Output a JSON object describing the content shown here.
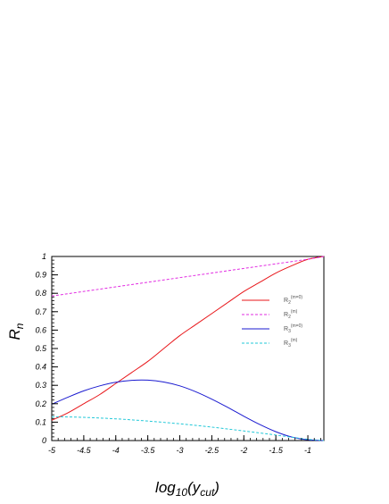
{
  "chart_data": {
    "type": "line",
    "xlabel": {
      "base": "log",
      "base_sub": "10",
      "open": "(y",
      "var_sub": "cut",
      "close": ")"
    },
    "ylabel": {
      "base": "R",
      "sub": "n"
    },
    "xlim": [
      -5,
      -0.75
    ],
    "ylim": [
      0,
      1
    ],
    "x_ticks": [
      -5,
      -4.5,
      -4,
      -3.5,
      -3,
      -2.5,
      -2,
      -1.5,
      -1
    ],
    "x_tick_labels": [
      "-5",
      "-4.5",
      "-4",
      "-3.5",
      "-3",
      "-2.5",
      "-2",
      "-1.5",
      "-1"
    ],
    "y_ticks": [
      0,
      0.1,
      0.2,
      0.3,
      0.4,
      0.5,
      0.6,
      0.7,
      0.8,
      0.9,
      1
    ],
    "y_tick_labels": [
      "0",
      "0.1",
      "0.2",
      "0.3",
      "0.4",
      "0.5",
      "0.6",
      "0.7",
      "0.8",
      "0.9",
      "1"
    ],
    "legend_position": "right-middle",
    "series": [
      {
        "legend": {
          "base": "R",
          "sub": "2",
          "sup": "(m=0)"
        },
        "color": "#e8161a",
        "dash": "solid",
        "x": [
          -5,
          -4.75,
          -4.5,
          -4.25,
          -4,
          -3.75,
          -3.5,
          -3.25,
          -3,
          -2.75,
          -2.5,
          -2.25,
          -2,
          -1.75,
          -1.5,
          -1.25,
          -1,
          -0.75
        ],
        "y": [
          0.11,
          0.15,
          0.2,
          0.25,
          0.31,
          0.37,
          0.43,
          0.5,
          0.57,
          0.63,
          0.69,
          0.75,
          0.81,
          0.86,
          0.91,
          0.95,
          0.985,
          1.0
        ]
      },
      {
        "legend": {
          "base": "R",
          "sub": "2",
          "sup": "(m)"
        },
        "color": "#e22ce2",
        "dash": "dashed",
        "x": [
          -5,
          -4.5,
          -4,
          -3.5,
          -3,
          -2.5,
          -2,
          -1.5,
          -1,
          -0.75
        ],
        "y": [
          0.785,
          0.81,
          0.835,
          0.86,
          0.885,
          0.91,
          0.935,
          0.96,
          0.985,
          1.0
        ]
      },
      {
        "legend": {
          "base": "R",
          "sub": "3",
          "sup": "(m=0)"
        },
        "color": "#1a1ad0",
        "dash": "solid",
        "x": [
          -5,
          -4.75,
          -4.5,
          -4.25,
          -4,
          -3.75,
          -3.5,
          -3.25,
          -3,
          -2.75,
          -2.5,
          -2.25,
          -2,
          -1.75,
          -1.5,
          -1.25,
          -1,
          -0.75
        ],
        "y": [
          0.197,
          0.235,
          0.27,
          0.297,
          0.317,
          0.327,
          0.328,
          0.318,
          0.297,
          0.265,
          0.225,
          0.18,
          0.132,
          0.087,
          0.048,
          0.019,
          0.004,
          0.0
        ]
      },
      {
        "legend": {
          "base": "R",
          "sub": "3",
          "sup": "(m)"
        },
        "color": "#22c8d8",
        "dash": "dashed",
        "x": [
          -5,
          -4.5,
          -4,
          -3.5,
          -3,
          -2.5,
          -2,
          -1.5,
          -1.25,
          -1,
          -0.75
        ],
        "y": [
          0.13,
          0.126,
          0.118,
          0.106,
          0.091,
          0.073,
          0.052,
          0.03,
          0.018,
          0.007,
          0.0
        ]
      }
    ]
  }
}
